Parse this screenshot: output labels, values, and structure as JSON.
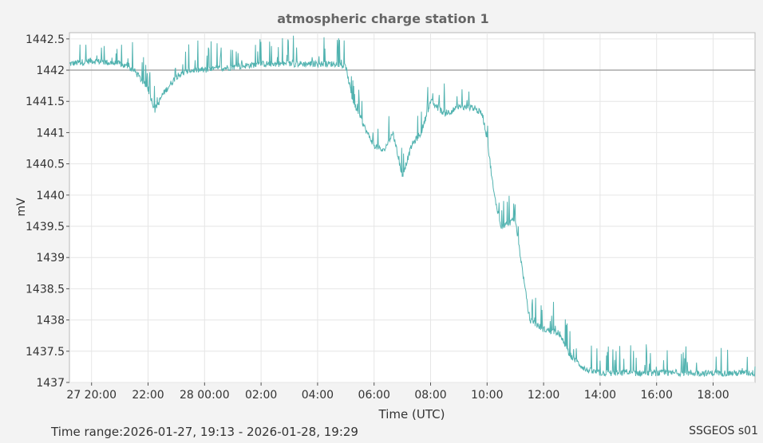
{
  "chart_data": {
    "type": "line",
    "title": "atmospheric charge station 1",
    "xlabel": "Time (UTC)",
    "ylabel": "mV",
    "ylim": [
      1437,
      1442.6
    ],
    "xlim": [
      "2026-01-27 19:13",
      "2026-01-28 19:29"
    ],
    "x_ticks": [
      "27 20:00",
      "22:00",
      "28 00:00",
      "02:00",
      "04:00",
      "06:00",
      "08:00",
      "10:00",
      "12:00",
      "14:00",
      "16:00",
      "18:00"
    ],
    "y_ticks": [
      "1437",
      "1437.5",
      "1438",
      "1438.5",
      "1439",
      "1439.5",
      "1440",
      "1440.5",
      "1441",
      "1441.5",
      "1442",
      "1442.5"
    ],
    "grid": true,
    "reference_line": 1442,
    "series": [
      {
        "color": "#52b3b0",
        "x": [
          "2026-01-27 19:13",
          "2026-01-27 20:00",
          "2026-01-27 21:00",
          "2026-01-27 21:30",
          "2026-01-27 22:00",
          "2026-01-27 22:15",
          "2026-01-27 22:30",
          "2026-01-27 23:00",
          "2026-01-27 23:30",
          "2026-01-28 00:00",
          "2026-01-28 01:00",
          "2026-01-28 02:00",
          "2026-01-28 03:00",
          "2026-01-28 04:00",
          "2026-01-28 04:45",
          "2026-01-28 05:00",
          "2026-01-28 05:15",
          "2026-01-28 05:45",
          "2026-01-28 06:00",
          "2026-01-28 06:20",
          "2026-01-28 06:40",
          "2026-01-28 07:00",
          "2026-01-28 07:20",
          "2026-01-28 07:40",
          "2026-01-28 08:00",
          "2026-01-28 08:30",
          "2026-01-28 09:00",
          "2026-01-28 09:30",
          "2026-01-28 09:50",
          "2026-01-28 10:00",
          "2026-01-28 10:15",
          "2026-01-28 10:30",
          "2026-01-28 11:00",
          "2026-01-28 11:15",
          "2026-01-28 11:30",
          "2026-01-28 12:00",
          "2026-01-28 12:30",
          "2026-01-28 13:00",
          "2026-01-28 13:30",
          "2026-01-28 14:00",
          "2026-01-28 16:00",
          "2026-01-28 18:00",
          "2026-01-28 19:29"
        ],
        "y": [
          1442.1,
          1442.15,
          1442.1,
          1442.0,
          1441.7,
          1441.35,
          1441.6,
          1441.9,
          1442.0,
          1442.0,
          1442.05,
          1442.1,
          1442.1,
          1442.1,
          1442.1,
          1442.05,
          1441.5,
          1441.0,
          1440.8,
          1440.7,
          1441.0,
          1440.3,
          1440.8,
          1441.0,
          1441.5,
          1441.3,
          1441.4,
          1441.4,
          1441.3,
          1440.9,
          1440.0,
          1439.5,
          1439.6,
          1438.8,
          1438.0,
          1437.85,
          1437.8,
          1437.4,
          1437.2,
          1437.15,
          1437.15,
          1437.15,
          1437.15
        ]
      }
    ]
  },
  "footer": {
    "range_label": "Time range:",
    "range_value": "2026-01-27, 19:13 - 2026-01-28, 19:29",
    "source": "SSGEOS s01"
  }
}
